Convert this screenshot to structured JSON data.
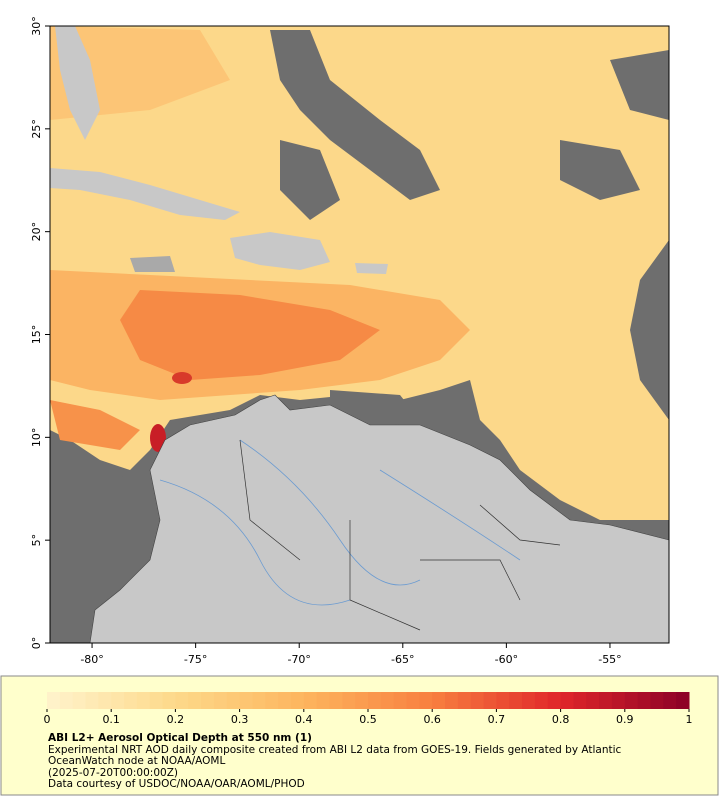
{
  "map": {
    "xlim": [
      -82.03,
      -52.15
    ],
    "ylim": [
      0,
      30
    ],
    "xticks": [
      {
        "value": -80,
        "label": "-80°"
      },
      {
        "value": -75,
        "label": "-75°"
      },
      {
        "value": -70,
        "label": "-70°"
      },
      {
        "value": -65,
        "label": "-65°"
      },
      {
        "value": -60,
        "label": "-60°"
      },
      {
        "value": -55,
        "label": "-55°"
      }
    ],
    "yticks": [
      {
        "value": 0,
        "label": "0°"
      },
      {
        "value": 5,
        "label": "5°"
      },
      {
        "value": 10,
        "label": "10°"
      },
      {
        "value": 15,
        "label": "15°"
      },
      {
        "value": 20,
        "label": "20°"
      },
      {
        "value": 25,
        "label": "25°"
      },
      {
        "value": 30,
        "label": "30°"
      }
    ]
  },
  "colorbar": {
    "lim": [
      0,
      1
    ],
    "ticks": [
      0,
      0.1,
      0.2,
      0.3,
      0.4,
      0.5,
      0.6,
      0.7,
      0.8,
      0.9,
      1
    ],
    "colors": [
      "#fff3cc",
      "#fdd98a",
      "#fdb55e",
      "#f87f3f",
      "#e0262a",
      "#8b0026"
    ]
  },
  "caption": {
    "title": "ABI L2+ Aerosol Optical Depth at 550 nm (1)",
    "lines": [
      "Experimental NRT AOD daily composite created from ABI L2 data from GOES-19. Fields generated by Atlantic OceanWatch node at NOAA/AOML",
      "(2025-07-20T00:00:00Z)",
      "Data courtesy of USDOC/NOAA/OAR/AOML/PHOD"
    ]
  }
}
